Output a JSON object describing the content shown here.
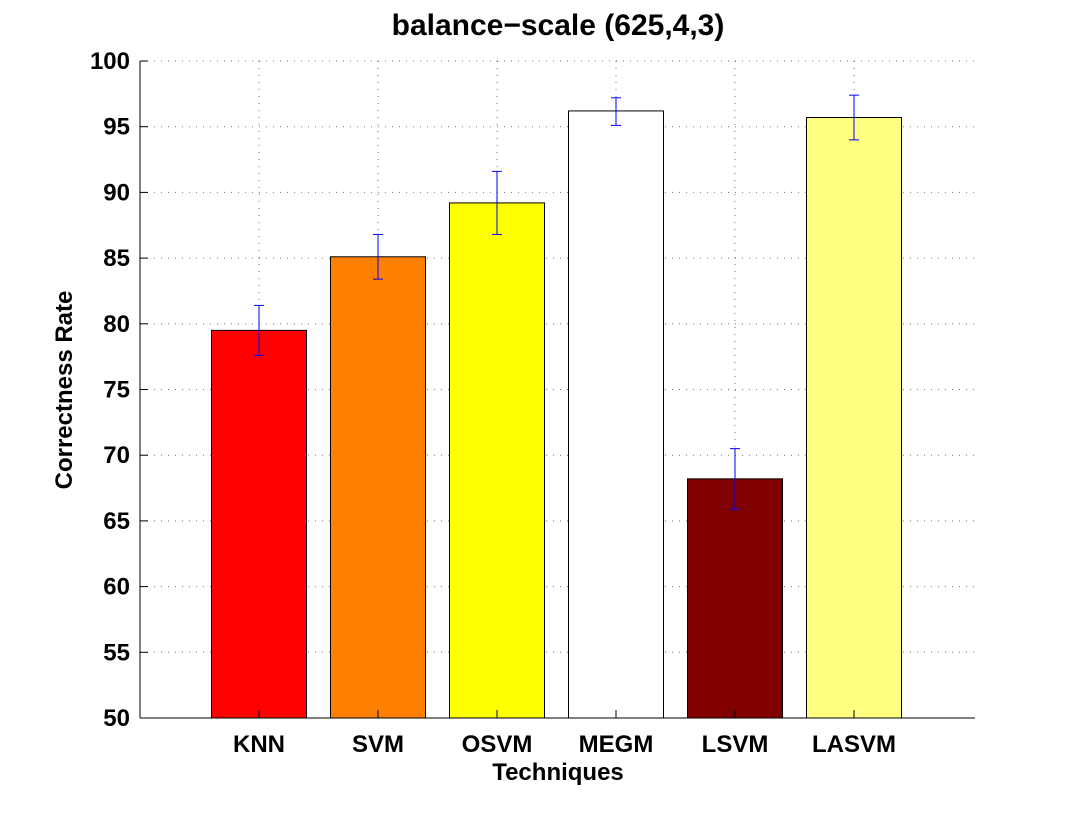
{
  "chart_data": {
    "type": "bar",
    "title": "balance−scale (625,4,3)",
    "xlabel": "Techniques",
    "ylabel": "Correctness Rate",
    "categories": [
      "KNN",
      "SVM",
      "OSVM",
      "MEGM",
      "LSVM",
      "LASVM"
    ],
    "values": [
      79.5,
      85.1,
      89.2,
      96.2,
      68.2,
      95.7
    ],
    "error_low": [
      77.6,
      83.4,
      86.8,
      95.1,
      65.9,
      94.0
    ],
    "error_high": [
      81.4,
      86.8,
      91.6,
      97.2,
      70.5,
      97.4
    ],
    "bar_colors": [
      "#ff0000",
      "#ff8000",
      "#ffff00",
      "#ffffff",
      "#800000",
      "#ffff80"
    ],
    "error_bar_color": "#0000ff",
    "ylim": [
      50,
      100
    ],
    "yticks": [
      50,
      55,
      60,
      65,
      70,
      75,
      80,
      85,
      90,
      95,
      100
    ],
    "grid": true
  }
}
